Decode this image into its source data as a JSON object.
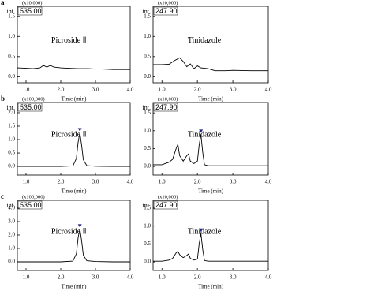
{
  "chart_data": [
    {
      "type": "line",
      "panel": "a",
      "y_multiplier": "(x10,000)",
      "y_label": "int.",
      "annotation": "535.00",
      "compound": "Picroside Ⅱ",
      "x_label": "Time (min)",
      "color": "#000000",
      "xlim": [
        0.75,
        4.0
      ],
      "xticks": [
        {
          "value": 1,
          "label": "1.0"
        },
        {
          "value": 2,
          "label": "2.0"
        },
        {
          "value": 3,
          "label": "3.0"
        },
        {
          "value": 4,
          "label": "4.0"
        }
      ],
      "ylim": [
        -0.15,
        1.75
      ],
      "yticks": [
        {
          "value": 0,
          "label": "0.0"
        },
        0.5,
        {
          "value": 1,
          "label": "1.0"
        },
        1.5
      ],
      "x": [
        0.75,
        1.0,
        1.2,
        1.4,
        1.5,
        1.6,
        1.7,
        1.8,
        2.0,
        2.2,
        2.5,
        2.8,
        3.0,
        3.2,
        3.5,
        3.8,
        4.0
      ],
      "values": [
        0.22,
        0.21,
        0.2,
        0.22,
        0.28,
        0.24,
        0.28,
        0.24,
        0.22,
        0.21,
        0.2,
        0.2,
        0.19,
        0.19,
        0.18,
        0.18,
        0.18
      ]
    },
    {
      "type": "line",
      "y_multiplier": "(x10,000)",
      "y_label": "int.",
      "annotation": "247.90",
      "compound": "Tinidazole",
      "x_label": "Time (min)",
      "color": "#000000",
      "xlim": [
        0.75,
        4.0
      ],
      "xticks": [
        {
          "value": 1,
          "label": "1.0"
        },
        {
          "value": 2,
          "label": "2.0"
        },
        {
          "value": 3,
          "label": "3.0"
        },
        {
          "value": 4,
          "label": "4.0"
        }
      ],
      "ylim": [
        -0.15,
        1.75
      ],
      "yticks": [
        {
          "value": 0,
          "label": "0.0"
        },
        0.5,
        {
          "value": 1,
          "label": "1.0"
        },
        1.5
      ],
      "x": [
        0.75,
        1.0,
        1.2,
        1.35,
        1.5,
        1.6,
        1.7,
        1.8,
        1.9,
        2.0,
        2.1,
        2.3,
        2.5,
        2.8,
        3.0,
        3.5,
        4.0
      ],
      "values": [
        0.3,
        0.3,
        0.31,
        0.4,
        0.47,
        0.38,
        0.25,
        0.32,
        0.2,
        0.27,
        0.22,
        0.2,
        0.15,
        0.15,
        0.16,
        0.15,
        0.15
      ]
    },
    {
      "type": "line",
      "panel": "b",
      "y_multiplier": "(x100,000)",
      "y_label": "int.",
      "annotation": "535.00",
      "compound": "Picroside Ⅱ",
      "x_label": "Time (min)",
      "color": "#000000",
      "xlim": [
        0.75,
        4.0
      ],
      "xticks": [
        {
          "value": 1,
          "label": "1.0"
        },
        {
          "value": 2,
          "label": "2.0"
        },
        {
          "value": 3,
          "label": "3.0"
        },
        {
          "value": 4,
          "label": "4.0"
        }
      ],
      "ylim": [
        -0.32,
        2.38
      ],
      "yticks": [
        {
          "value": 0,
          "label": "0.0"
        },
        0.5,
        {
          "value": 1,
          "label": "1.0"
        },
        1.5,
        {
          "value": 2,
          "label": "2.0"
        }
      ],
      "x": [
        0.75,
        1.5,
        2.0,
        2.35,
        2.45,
        2.5,
        2.55,
        2.6,
        2.65,
        2.75,
        3.0,
        3.5,
        4.0
      ],
      "values": [
        0,
        0,
        0,
        0.02,
        0.3,
        0.9,
        1.25,
        0.8,
        0.25,
        0.03,
        0.01,
        0,
        0
      ]
    },
    {
      "type": "line",
      "y_multiplier": "(x10,000)",
      "y_label": "int.",
      "annotation": "247.90",
      "compound": "Tinidazole",
      "x_label": "Time (min)",
      "color": "#000000",
      "xlim": [
        0.75,
        4.0
      ],
      "xticks": [
        {
          "value": 1,
          "label": "1.0"
        },
        {
          "value": 2,
          "label": "2.0"
        },
        {
          "value": 3,
          "label": "3.0"
        },
        {
          "value": 4,
          "label": "4.0"
        }
      ],
      "ylim": [
        -0.24,
        1.79
      ],
      "yticks": [
        {
          "value": 0,
          "label": "0.0"
        },
        0.5,
        {
          "value": 1,
          "label": "1.0"
        },
        1.5
      ],
      "x": [
        0.75,
        1.0,
        1.2,
        1.3,
        1.4,
        1.45,
        1.5,
        1.6,
        1.7,
        1.75,
        1.8,
        1.9,
        2.0,
        2.05,
        2.1,
        2.15,
        2.2,
        2.3,
        2.5,
        3.0,
        4.0
      ],
      "values": [
        0.05,
        0.05,
        0.12,
        0.2,
        0.5,
        0.62,
        0.3,
        0.15,
        0.3,
        0.35,
        0.15,
        0.08,
        0.15,
        0.6,
        0.9,
        0.4,
        0.05,
        0.02,
        0.02,
        0.02,
        0.02
      ]
    },
    {
      "type": "line",
      "panel": "c",
      "y_multiplier": "(x100,000)",
      "y_label": "int.",
      "annotation": "535.00",
      "compound": "Picroside Ⅱ",
      "x_label": "Time (min)",
      "color": "#000000",
      "xlim": [
        0.75,
        4.0
      ],
      "xticks": [
        {
          "value": 1,
          "label": "1.0"
        },
        {
          "value": 2,
          "label": "2.0"
        },
        {
          "value": 3,
          "label": "3.0"
        },
        {
          "value": 4,
          "label": "4.0"
        }
      ],
      "ylim": [
        -0.65,
        4.59
      ],
      "yticks": [
        {
          "value": 0,
          "label": "0.0"
        },
        {
          "value": 1,
          "label": "1.0"
        },
        {
          "value": 2,
          "label": "2.0"
        },
        {
          "value": 3,
          "label": "3.0"
        },
        {
          "value": 4,
          "label": "4.0"
        }
      ],
      "x": [
        0.75,
        1.5,
        2.0,
        2.35,
        2.45,
        2.5,
        2.55,
        2.6,
        2.65,
        2.75,
        3.0,
        3.5,
        4.0
      ],
      "values": [
        0,
        0,
        0,
        0.05,
        0.6,
        1.8,
        2.45,
        1.6,
        0.5,
        0.08,
        0.02,
        0,
        0
      ]
    },
    {
      "type": "line",
      "y_multiplier": "(x10,000)",
      "y_label": "int.",
      "annotation": "247.90",
      "compound": "Tinidazole",
      "x_label": "Time (min)",
      "color": "#000000",
      "xlim": [
        0.75,
        4.0
      ],
      "xticks": [
        {
          "value": 1,
          "label": "1.0"
        },
        {
          "value": 2,
          "label": "2.0"
        },
        {
          "value": 3,
          "label": "3.0"
        },
        {
          "value": 4,
          "label": "4.0"
        }
      ],
      "ylim": [
        -0.24,
        1.72
      ],
      "yticks": [
        {
          "value": 0,
          "label": "0.0"
        },
        0.5,
        {
          "value": 1,
          "label": "1.0"
        },
        1.5
      ],
      "x": [
        0.75,
        1.0,
        1.2,
        1.3,
        1.4,
        1.45,
        1.5,
        1.6,
        1.7,
        1.75,
        1.8,
        1.9,
        2.0,
        2.05,
        2.1,
        2.15,
        2.2,
        2.3,
        2.5,
        3.0,
        4.0
      ],
      "values": [
        0.02,
        0.02,
        0.05,
        0.1,
        0.25,
        0.3,
        0.2,
        0.12,
        0.18,
        0.22,
        0.1,
        0.05,
        0.08,
        0.5,
        0.8,
        0.35,
        0.04,
        0.02,
        0.02,
        0.02,
        0.02
      ]
    }
  ]
}
